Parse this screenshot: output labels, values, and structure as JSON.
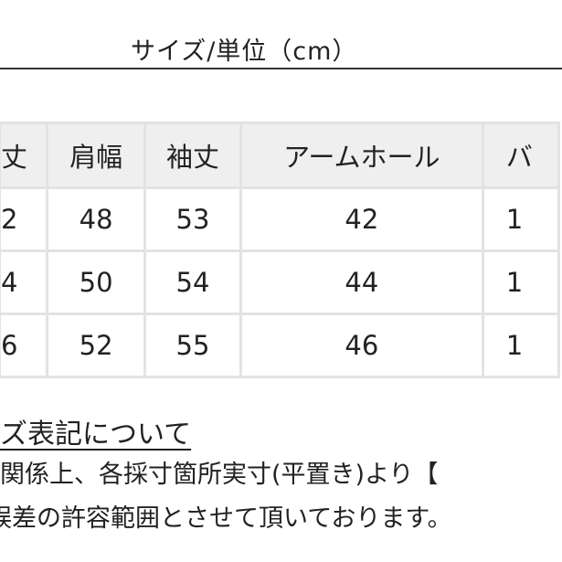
{
  "title": "サイズ/単位（cm）",
  "table": {
    "headers": [
      "丈",
      "肩幅",
      "袖丈",
      "アームホール",
      "バ"
    ],
    "rows": [
      [
        "2",
        "48",
        "53",
        "42",
        "1"
      ],
      [
        "4",
        "50",
        "54",
        "44",
        "1"
      ],
      [
        "6",
        "52",
        "55",
        "46",
        "1"
      ]
    ]
  },
  "notes": {
    "heading": "ズ表記について",
    "line1": "関係上、各採寸箇所実寸(平置き)より【",
    "line2": "誤差の許容範囲とさせて頂いております。"
  },
  "colors": {
    "header_bg": "#efefef",
    "grid": "#e3e3e3",
    "text": "#222222"
  }
}
